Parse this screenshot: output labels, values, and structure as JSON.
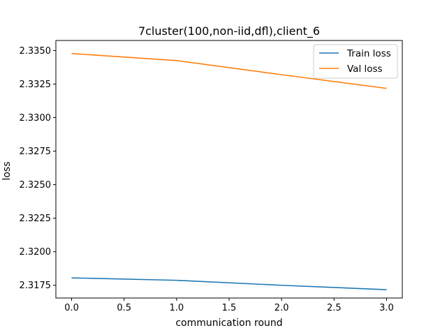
{
  "chart_data": {
    "type": "line",
    "title": "7cluster(100,non-iid,dfl),client_6",
    "xlabel": "communication round",
    "ylabel": "loss",
    "xlim": [
      -0.15,
      3.15
    ],
    "ylim": [
      2.31655,
      2.33575
    ],
    "xticks": [
      0.0,
      0.5,
      1.0,
      1.5,
      2.0,
      2.5,
      3.0
    ],
    "xtick_labels": [
      "0.0",
      "0.5",
      "1.0",
      "1.5",
      "2.0",
      "2.5",
      "3.0"
    ],
    "yticks": [
      2.3175,
      2.32,
      2.3225,
      2.325,
      2.3275,
      2.33,
      2.3325,
      2.335
    ],
    "ytick_labels": [
      "2.3175",
      "2.3200",
      "2.3225",
      "2.3250",
      "2.3275",
      "2.3300",
      "2.3325",
      "2.3350"
    ],
    "grid": false,
    "legend_position": "top-right",
    "series": [
      {
        "name": "Train loss",
        "color": "#1f77b4",
        "x": [
          0,
          1,
          2,
          3
        ],
        "y": [
          2.31805,
          2.31787,
          2.3175,
          2.31717
        ]
      },
      {
        "name": "Val loss",
        "color": "#ff7f0e",
        "x": [
          0,
          1,
          2,
          3
        ],
        "y": [
          2.33478,
          2.33425,
          2.3332,
          2.33218
        ]
      }
    ]
  }
}
